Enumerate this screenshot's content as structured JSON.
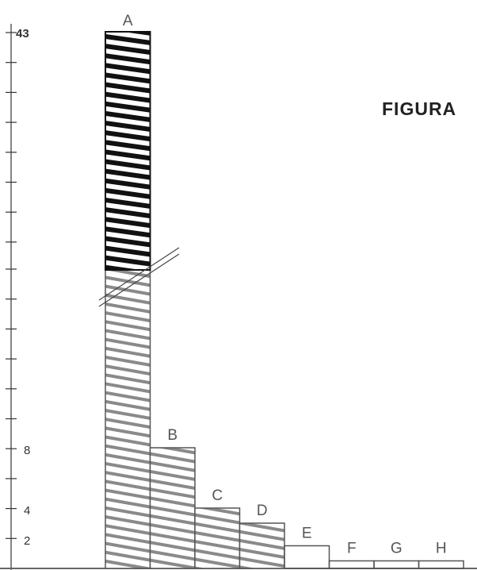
{
  "figure_label": "FIGURA",
  "chart_data": {
    "type": "bar",
    "categories": [
      "A",
      "B",
      "C",
      "D",
      "E",
      "F",
      "G",
      "H"
    ],
    "values": [
      43,
      8,
      4,
      3,
      1.5,
      0.5,
      0.5,
      0.5
    ],
    "ytick_labels": [
      "43",
      "8",
      "4",
      "2"
    ],
    "axis_break": true,
    "colors": {
      "ink": "#222222",
      "hatch_dark": "#111111",
      "hatch_light": "#888888",
      "box": "#555555"
    }
  }
}
